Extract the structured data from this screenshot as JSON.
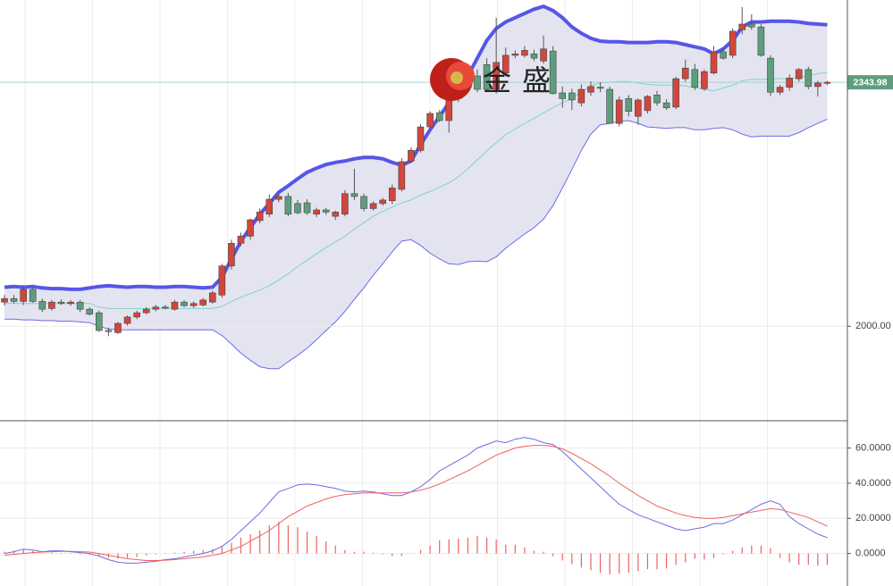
{
  "chart_data": [
    {
      "type": "candlestick",
      "watermark": "金盛",
      "up_color": "#d2463c",
      "down_color": "#5e9e7c",
      "open": [
        2034,
        2039,
        2035,
        2052,
        2035,
        2025,
        2034,
        2032,
        2034,
        2024,
        2019,
        1994,
        1991,
        2004,
        2013,
        2019,
        2024,
        2027,
        2024,
        2034,
        2029,
        2030,
        2034,
        2044,
        2085,
        2117,
        2127,
        2149,
        2158,
        2179,
        2183,
        2173,
        2174,
        2158,
        2164,
        2155,
        2158,
        2187,
        2183,
        2166,
        2173,
        2177,
        2193,
        2233,
        2248,
        2281,
        2301,
        2290,
        2321,
        2340,
        2353,
        2369,
        2334,
        2357,
        2382,
        2382,
        2384,
        2374,
        2388,
        2329,
        2329,
        2315,
        2330,
        2337,
        2334,
        2286,
        2321,
        2296,
        2304,
        2326,
        2315,
        2309,
        2349,
        2362,
        2335,
        2357,
        2387,
        2382,
        2418,
        2426,
        2422,
        2378,
        2330,
        2337,
        2349,
        2362,
        2338,
        2343
      ],
      "high": [
        2044,
        2044,
        2058,
        2056,
        2039,
        2037,
        2038,
        2037,
        2037,
        2027,
        2022,
        1998,
        2006,
        2015,
        2022,
        2027,
        2030,
        2030,
        2037,
        2037,
        2035,
        2040,
        2050,
        2088,
        2122,
        2132,
        2152,
        2166,
        2186,
        2187,
        2188,
        2178,
        2179,
        2167,
        2167,
        2163,
        2192,
        2222,
        2187,
        2176,
        2181,
        2200,
        2237,
        2252,
        2285,
        2303,
        2305,
        2325,
        2352,
        2370,
        2362,
        2378,
        2435,
        2393,
        2389,
        2395,
        2390,
        2410,
        2395,
        2338,
        2335,
        2341,
        2345,
        2344,
        2338,
        2324,
        2326,
        2321,
        2326,
        2332,
        2320,
        2352,
        2376,
        2370,
        2362,
        2395,
        2392,
        2420,
        2450,
        2440,
        2426,
        2382,
        2340,
        2355,
        2364,
        2366,
        2346,
        2346
      ],
      "low": [
        2029,
        2032,
        2030,
        2033,
        2020,
        2022,
        2030,
        2029,
        2020,
        2015,
        1992,
        1986,
        1989,
        2001,
        2010,
        2017,
        2021,
        2024,
        2022,
        2027,
        2026,
        2028,
        2032,
        2040,
        2080,
        2113,
        2122,
        2145,
        2154,
        2175,
        2155,
        2158,
        2157,
        2154,
        2157,
        2150,
        2155,
        2178,
        2162,
        2163,
        2170,
        2172,
        2190,
        2230,
        2245,
        2278,
        2288,
        2273,
        2316,
        2333,
        2330,
        2330,
        2328,
        2352,
        2378,
        2379,
        2374,
        2370,
        2327,
        2308,
        2305,
        2310,
        2325,
        2330,
        2286,
        2282,
        2296,
        2284,
        2300,
        2311,
        2305,
        2306,
        2345,
        2333,
        2332,
        2355,
        2376,
        2378,
        2412,
        2418,
        2380,
        2325,
        2326,
        2332,
        2345,
        2334,
        2324,
        2340
      ],
      "close": [
        2039,
        2035,
        2052,
        2035,
        2024,
        2034,
        2032,
        2034,
        2024,
        2017,
        1994,
        1993,
        2004,
        2013,
        2019,
        2024,
        2027,
        2026,
        2034,
        2029,
        2032,
        2037,
        2047,
        2085,
        2117,
        2127,
        2150,
        2161,
        2179,
        2183,
        2158,
        2160,
        2160,
        2164,
        2161,
        2161,
        2187,
        2183,
        2166,
        2173,
        2178,
        2195,
        2232,
        2248,
        2281,
        2300,
        2290,
        2321,
        2347,
        2366,
        2334,
        2334,
        2372,
        2382,
        2384,
        2389,
        2378,
        2391,
        2328,
        2321,
        2319,
        2334,
        2338,
        2336,
        2286,
        2319,
        2303,
        2319,
        2324,
        2315,
        2308,
        2349,
        2364,
        2337,
        2359,
        2387,
        2378,
        2416,
        2426,
        2422,
        2382,
        2330,
        2337,
        2350,
        2362,
        2338,
        2343,
        2343.98
      ],
      "bands": [
        {
          "color": "#5656e8",
          "values": [
            2055,
            2056,
            2055,
            2056,
            2054,
            2053,
            2053,
            2052,
            2052,
            2054,
            2056,
            2057,
            2056,
            2055,
            2056,
            2056,
            2055,
            2055,
            2056,
            2056,
            2055,
            2054,
            2055,
            2069,
            2095,
            2120,
            2139,
            2158,
            2173,
            2189,
            2198,
            2208,
            2217,
            2223,
            2228,
            2231,
            2233,
            2236,
            2238,
            2238,
            2236,
            2231,
            2227,
            2233,
            2256,
            2277,
            2296,
            2315,
            2334,
            2353,
            2378,
            2403,
            2420,
            2429,
            2435,
            2441,
            2447,
            2451,
            2445,
            2435,
            2422,
            2413,
            2406,
            2402,
            2401,
            2401,
            2400,
            2400,
            2400,
            2401,
            2401,
            2400,
            2397,
            2394,
            2391,
            2384,
            2391,
            2403,
            2422,
            2429,
            2429,
            2430,
            2430,
            2430,
            2429,
            2427,
            2426,
            2425
          ]
        },
        {
          "color": "#7fd3c2",
          "values": [
            2032,
            2032,
            2032,
            2032,
            2032,
            2032,
            2032,
            2032,
            2032,
            2032,
            2027,
            2025,
            2025,
            2025,
            2025,
            2025,
            2025,
            2025,
            2025,
            2025,
            2025,
            2025,
            2025,
            2028,
            2035,
            2041,
            2046,
            2051,
            2057,
            2065,
            2074,
            2084,
            2093,
            2102,
            2111,
            2119,
            2127,
            2137,
            2146,
            2155,
            2162,
            2168,
            2174,
            2178,
            2185,
            2190,
            2196,
            2202,
            2211,
            2222,
            2235,
            2247,
            2259,
            2270,
            2278,
            2286,
            2293,
            2301,
            2308,
            2315,
            2322,
            2330,
            2339,
            2343,
            2344,
            2345,
            2345,
            2343,
            2341,
            2340,
            2340,
            2340,
            2339,
            2336,
            2334,
            2332,
            2336,
            2340,
            2346,
            2348,
            2348,
            2349,
            2349,
            2349,
            2351,
            2353,
            2356,
            2358
          ]
        },
        {
          "color": "#6b6bea",
          "values": [
            2010,
            2010,
            2009,
            2009,
            2008,
            2008,
            2007,
            2007,
            2006,
            2005,
            2000,
            1996,
            1995,
            1995,
            1995,
            1995,
            1995,
            1995,
            1995,
            1995,
            1995,
            1995,
            1995,
            1987,
            1975,
            1962,
            1952,
            1943,
            1940,
            1940,
            1950,
            1959,
            1969,
            1981,
            1994,
            2006,
            2021,
            2038,
            2054,
            2072,
            2088,
            2105,
            2120,
            2122,
            2114,
            2103,
            2095,
            2088,
            2087,
            2091,
            2092,
            2091,
            2098,
            2110,
            2120,
            2130,
            2139,
            2151,
            2170,
            2195,
            2221,
            2248,
            2271,
            2284,
            2286,
            2289,
            2290,
            2286,
            2281,
            2280,
            2279,
            2280,
            2280,
            2277,
            2277,
            2279,
            2280,
            2277,
            2271,
            2267,
            2268,
            2268,
            2268,
            2268,
            2273,
            2280,
            2286,
            2292
          ]
        }
      ],
      "band_fill": "#e4e4f1",
      "last_price": 2343.98,
      "ylim": [
        1868,
        2460
      ],
      "yticks": [
        {
          "value": 2000,
          "label": "2000.00"
        }
      ],
      "grid": true
    },
    {
      "type": "macd",
      "series": [
        {
          "color": "#6b6bea",
          "values": [
            0,
            1,
            2.5,
            2,
            1,
            1.5,
            1.5,
            1,
            0.5,
            0,
            -1.5,
            -3.5,
            -5,
            -5.5,
            -5.5,
            -5,
            -4.5,
            -3.5,
            -3,
            -2,
            -1,
            0,
            1.5,
            4,
            8,
            13,
            18,
            23,
            29,
            35,
            37,
            39,
            39.5,
            39,
            38,
            37,
            35.5,
            35,
            35.5,
            35,
            34,
            33,
            33,
            35,
            38,
            42,
            47,
            50,
            53,
            56,
            60,
            62,
            64,
            63,
            65,
            66,
            65,
            63,
            62,
            58,
            53,
            48,
            43,
            38,
            33,
            28,
            25,
            22,
            20,
            18,
            16,
            14,
            13,
            14,
            15,
            17,
            17,
            19,
            22,
            25,
            28,
            30,
            28,
            21,
            17,
            14,
            11,
            9
          ]
        },
        {
          "color": "#f06060",
          "values": [
            -1,
            -0.5,
            0,
            0.5,
            0.8,
            1,
            1.2,
            1.2,
            1,
            0.8,
            0,
            -1,
            -2,
            -3,
            -3.5,
            -4,
            -4,
            -3.8,
            -3.5,
            -3,
            -2.5,
            -2,
            -1,
            0,
            2,
            4,
            7,
            10,
            13,
            17,
            21,
            24,
            27,
            29,
            31,
            32.5,
            33.5,
            34,
            34.5,
            34.5,
            34.5,
            34.5,
            34.5,
            35,
            36,
            37.5,
            39.5,
            42,
            44.5,
            47,
            50,
            53,
            56,
            58,
            60,
            61,
            61.5,
            61.5,
            61,
            59.5,
            57,
            54,
            51,
            47.5,
            44,
            40,
            36.5,
            33,
            30,
            27,
            25,
            23,
            21.5,
            20.5,
            20,
            20,
            20.5,
            21.5,
            22.5,
            23.5,
            24.5,
            25.5,
            25,
            23.5,
            22,
            20.5,
            18,
            15.5
          ]
        }
      ],
      "histogram": {
        "color": "#f06060",
        "values": [
          1,
          1.5,
          2.5,
          1.5,
          0.2,
          0.5,
          0.3,
          -0.2,
          -0.5,
          -0.8,
          -1.5,
          -2.5,
          -3,
          -2.5,
          -2,
          -1,
          -0.5,
          0.3,
          0.5,
          1,
          1.5,
          2,
          2.5,
          4,
          6,
          9,
          11,
          13,
          16,
          18,
          16,
          15,
          12.5,
          10,
          7,
          4.5,
          2,
          1,
          1,
          0.5,
          -0.5,
          -1.5,
          -1.5,
          0,
          2,
          4.5,
          7.5,
          8,
          8.5,
          9,
          10,
          9,
          8,
          5,
          5,
          3.5,
          1.5,
          1,
          -1.5,
          -4,
          -6,
          -8,
          -9.5,
          -11,
          -12,
          -11.5,
          -11,
          -10,
          -9,
          -9,
          -8.5,
          -6.5,
          -5,
          -3,
          -3.5,
          -2.5,
          -0.5,
          1.5,
          3.5,
          4.5,
          4.5,
          3,
          -2.5,
          -5,
          -6.5,
          -6.5,
          -7,
          -6.5
        ]
      },
      "ylim": [
        -18.5,
        75
      ],
      "yticks": [
        {
          "value": 0,
          "label": "0.0000"
        },
        {
          "value": 20,
          "label": "20.0000"
        },
        {
          "value": 40,
          "label": "40.0000"
        },
        {
          "value": 60,
          "label": "60.0000"
        }
      ],
      "grid": true
    }
  ]
}
